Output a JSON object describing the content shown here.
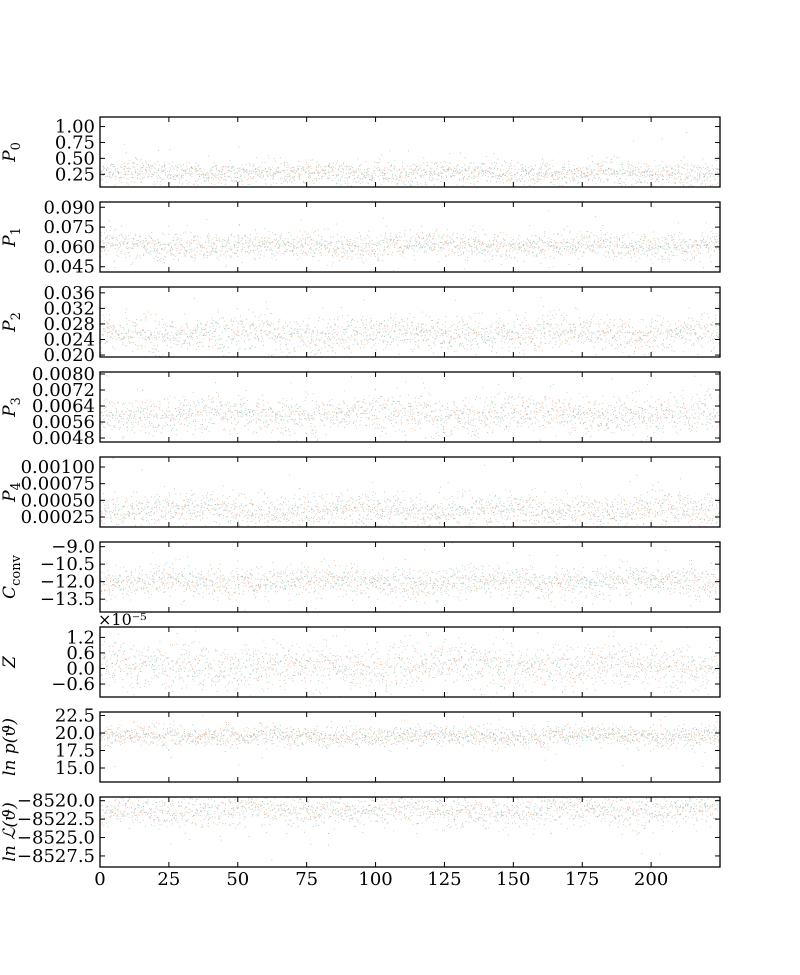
{
  "chart_data": {
    "type": "scatter",
    "description_free": true,
    "xlim": [
      0,
      225
    ],
    "xticks": [
      0,
      25,
      50,
      75,
      100,
      125,
      150,
      175,
      200
    ],
    "xtick_labels": [
      "0",
      "25",
      "50",
      "75",
      "100",
      "125",
      "150",
      "175",
      "200"
    ],
    "n_steps": 225,
    "colors": {
      "walkers_a": "#e8a070",
      "walkers_b": "#7fb8a8",
      "walkers_c": "#b0b0b0"
    },
    "panels": [
      {
        "key": "p0",
        "ylabel_main": "P",
        "ylabel_sub": "0",
        "ylim": [
          0.05,
          1.15
        ],
        "yticks": [
          0.25,
          0.5,
          0.75,
          1.0
        ],
        "ytick_labels": [
          "0.25",
          "0.50",
          "0.75",
          "1.00"
        ],
        "center": 0.27,
        "spread": 0.09,
        "offset_label": ""
      },
      {
        "key": "p1",
        "ylabel_main": "P",
        "ylabel_sub": "1",
        "ylim": [
          0.041,
          0.094
        ],
        "yticks": [
          0.045,
          0.06,
          0.075,
          0.09
        ],
        "ytick_labels": [
          "0.045",
          "0.060",
          "0.075",
          "0.090"
        ],
        "center": 0.061,
        "spread": 0.005,
        "offset_label": ""
      },
      {
        "key": "p2",
        "ylabel_main": "P",
        "ylabel_sub": "2",
        "ylim": [
          0.0195,
          0.0375
        ],
        "yticks": [
          0.02,
          0.024,
          0.028,
          0.032,
          0.036
        ],
        "ytick_labels": [
          "0.020",
          "0.024",
          "0.028",
          "0.032",
          "0.036"
        ],
        "center": 0.0255,
        "spread": 0.0022,
        "offset_label": ""
      },
      {
        "key": "p3",
        "ylabel_main": "P",
        "ylabel_sub": "3",
        "ylim": [
          0.0046,
          0.0081
        ],
        "yticks": [
          0.0048,
          0.0056,
          0.0064,
          0.0072,
          0.008
        ],
        "ytick_labels": [
          "0.0048",
          "0.0056",
          "0.0064",
          "0.0072",
          "0.0080"
        ],
        "center": 0.006,
        "spread": 0.00045,
        "offset_label": ""
      },
      {
        "key": "p4",
        "ylabel_main": "P",
        "ylabel_sub": "4",
        "ylim": [
          0.0001,
          0.00115
        ],
        "yticks": [
          0.00025,
          0.0005,
          0.00075,
          0.001
        ],
        "ytick_labels": [
          "0.00025",
          "0.00050",
          "0.00075",
          "0.00100"
        ],
        "center": 0.00035,
        "spread": 0.00012,
        "offset_label": ""
      },
      {
        "key": "cconv",
        "ylabel_main": "C",
        "ylabel_sub": "conv",
        "ylim": [
          -14.6,
          -8.6
        ],
        "yticks": [
          -13.5,
          -12.0,
          -10.5,
          -9.0
        ],
        "ytick_labels": [
          "−13.5",
          "−12.0",
          "−10.5",
          "−9.0"
        ],
        "center": -12.0,
        "spread": 0.65,
        "offset_label": "×10⁻⁵"
      },
      {
        "key": "z",
        "ylabel_main": "Z",
        "ylabel_sub": "",
        "ylim": [
          -1.1,
          1.6
        ],
        "yticks": [
          -0.6,
          0.0,
          0.6,
          1.2
        ],
        "ytick_labels": [
          "−0.6",
          "0.0",
          "0.6",
          "1.2"
        ],
        "center": 0.1,
        "spread": 0.42,
        "offset_label": ""
      },
      {
        "key": "lnprior",
        "ylabel_main": "ln p(ϑ)",
        "ylabel_sub": "",
        "ylim": [
          13.0,
          23.0
        ],
        "yticks": [
          15.0,
          17.5,
          20.0,
          22.5
        ],
        "ytick_labels": [
          "15.0",
          "17.5",
          "20.0",
          "22.5"
        ],
        "center": 19.6,
        "spread": 0.7,
        "offset_label": ""
      },
      {
        "key": "lnlike",
        "ylabel_main": "ln ℒ(ϑ)",
        "ylabel_sub": "",
        "ylim": [
          -8529.0,
          -8519.5
        ],
        "yticks": [
          -8527.5,
          -8525.0,
          -8522.5,
          -8520.0
        ],
        "ytick_labels": [
          "−8527.5",
          "−8525.0",
          "−8522.5",
          "−8520.0"
        ],
        "center": -8521.2,
        "spread": 1.1,
        "offset_label": ""
      }
    ]
  }
}
